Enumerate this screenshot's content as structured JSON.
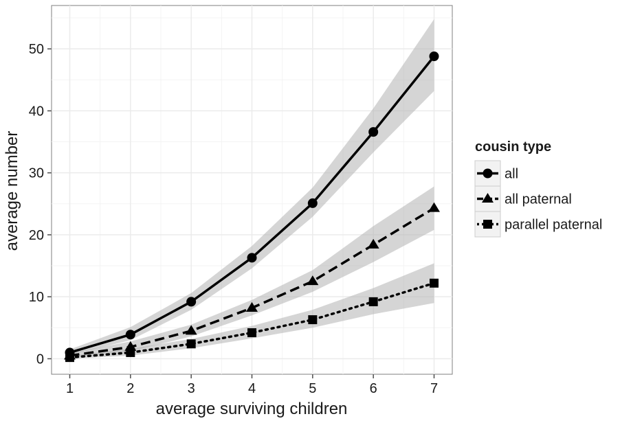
{
  "chart_data": {
    "type": "line",
    "title": "",
    "xlabel": "average surviving children",
    "ylabel": "average number",
    "xlim": [
      0.7,
      7.3
    ],
    "ylim": [
      -2.5,
      57
    ],
    "x_ticks": [
      1,
      2,
      3,
      4,
      5,
      6,
      7
    ],
    "y_ticks": [
      0,
      10,
      20,
      30,
      40,
      50
    ],
    "x_tick_labels": [
      "1",
      "2",
      "3",
      "4",
      "5",
      "6",
      "7"
    ],
    "y_tick_labels": [
      "0",
      "10",
      "20",
      "30",
      "40",
      "50"
    ],
    "grid": true,
    "confidence_bands": true,
    "legend": {
      "title": "cousin type",
      "position": "right"
    },
    "x": [
      1,
      2,
      3,
      4,
      5,
      6,
      7
    ],
    "series": [
      {
        "name": "all",
        "marker": "circle",
        "line_style": "solid",
        "values": [
          1.0,
          3.9,
          9.2,
          16.3,
          25.1,
          36.6,
          48.8
        ],
        "band_lower": [
          0.6,
          3.0,
          7.9,
          14.6,
          22.9,
          33.3,
          43.2
        ],
        "band_upper": [
          1.5,
          5.1,
          10.6,
          18.2,
          27.6,
          40.4,
          54.8
        ]
      },
      {
        "name": "all paternal",
        "marker": "triangle",
        "line_style": "dashed",
        "values": [
          0.5,
          1.9,
          4.5,
          8.2,
          12.5,
          18.4,
          24.3
        ],
        "band_lower": [
          0.2,
          1.2,
          3.6,
          7.0,
          10.8,
          15.6,
          20.8
        ],
        "band_upper": [
          0.9,
          2.8,
          5.5,
          9.5,
          14.3,
          21.4,
          27.8
        ]
      },
      {
        "name": "parallel paternal",
        "marker": "square",
        "line_style": "dotted",
        "values": [
          0.2,
          1.0,
          2.4,
          4.2,
          6.3,
          9.2,
          12.2
        ],
        "band_lower": [
          0.0,
          0.5,
          1.7,
          3.3,
          5.0,
          7.2,
          9.0
        ],
        "band_upper": [
          0.5,
          1.6,
          3.2,
          5.3,
          7.9,
          11.4,
          15.4
        ]
      }
    ],
    "colors": {
      "line": "#000000",
      "band": "#b3b3b3",
      "grid": "#ebebeb",
      "panel_border": "#7f7f7f"
    }
  }
}
